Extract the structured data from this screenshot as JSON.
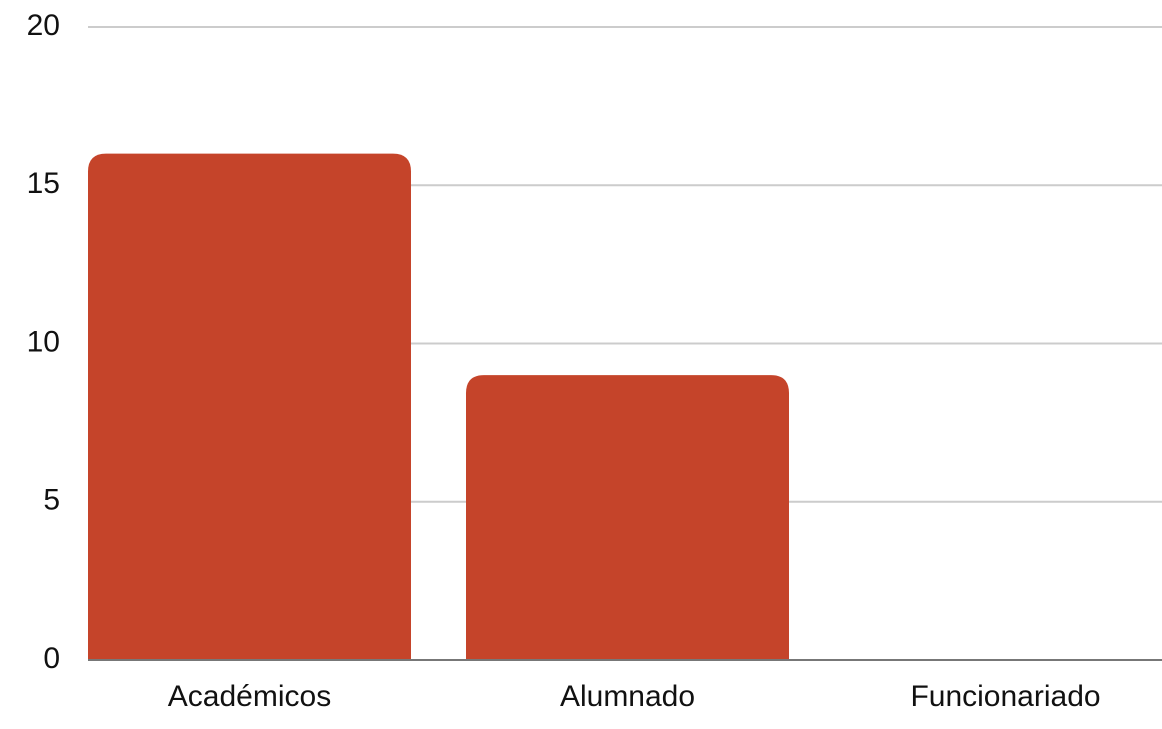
{
  "chart_data": {
    "type": "bar",
    "categories": [
      "Académicos",
      "Alumnado",
      "Funcionariado"
    ],
    "values": [
      16,
      9,
      0
    ],
    "color": "#c5442a",
    "ylim": [
      0,
      20
    ],
    "yticks": [
      0,
      5,
      10,
      15,
      20
    ],
    "grid": true
  }
}
